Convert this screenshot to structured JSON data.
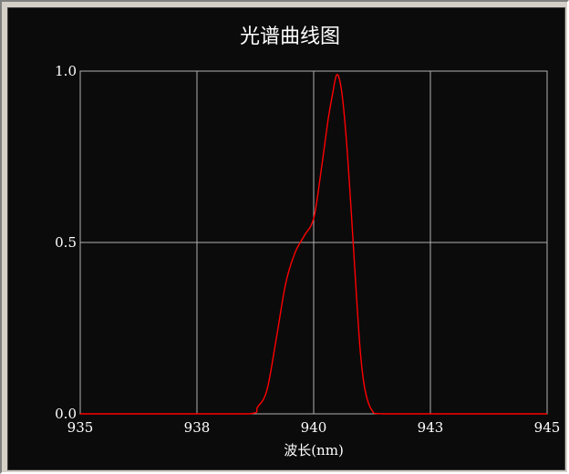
{
  "chart_data": {
    "type": "line",
    "title": "光谱曲线图",
    "xlabel": "波长(nm)",
    "ylabel": "",
    "xlim": [
      935,
      945
    ],
    "ylim": [
      0,
      1
    ],
    "x_ticks": [
      935,
      937.5,
      940,
      942.5,
      945
    ],
    "x_tick_labels": [
      "935",
      "938",
      "940",
      "943",
      "945"
    ],
    "y_ticks": [
      0,
      0.5,
      1
    ],
    "y_tick_labels": [
      "0.0",
      "0.5",
      "1.0"
    ],
    "grid": true,
    "legend": "none",
    "series": [
      {
        "color": "#ff0000",
        "x": [
          935,
          937,
          938.6,
          938.8,
          939.0,
          939.2,
          939.4,
          939.6,
          939.8,
          940.0,
          940.15,
          940.3,
          940.4,
          940.5,
          940.6,
          940.7,
          940.8,
          940.9,
          941.0,
          941.1,
          941.25,
          941.5,
          943,
          945
        ],
        "y": [
          0,
          0,
          0,
          0.02,
          0.07,
          0.22,
          0.38,
          0.47,
          0.52,
          0.57,
          0.7,
          0.85,
          0.93,
          0.99,
          0.94,
          0.8,
          0.6,
          0.38,
          0.18,
          0.07,
          0.01,
          0,
          0,
          0
        ]
      }
    ]
  }
}
